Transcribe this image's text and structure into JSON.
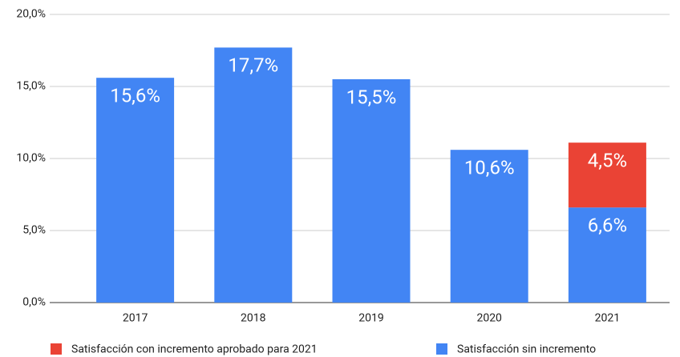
{
  "chart_data": {
    "type": "stacked_bar",
    "categories": [
      "2017",
      "2018",
      "2019",
      "2020",
      "2021"
    ],
    "series": [
      {
        "name": "Satisfacción con incremento aprobado para 2021",
        "color": "#ea4335",
        "values": [
          null,
          null,
          null,
          null,
          4.5
        ],
        "value_labels": [
          null,
          null,
          null,
          null,
          "4,5%"
        ]
      },
      {
        "name": "Satisfacción sin incremento",
        "color": "#4285f4",
        "values": [
          15.6,
          17.7,
          15.5,
          10.6,
          6.6
        ],
        "value_labels": [
          "15,6%",
          "17,7%",
          "15,5%",
          "10,6%",
          "6,6%"
        ]
      }
    ],
    "ylim": [
      0,
      20
    ],
    "yticks": [
      {
        "value": 0,
        "label": "0,0%"
      },
      {
        "value": 5,
        "label": "5,0%"
      },
      {
        "value": 10,
        "label": "10,0%"
      },
      {
        "value": 15,
        "label": "15,0%"
      },
      {
        "value": 20,
        "label": "20,0%"
      }
    ],
    "grid": true,
    "legend": "bottom"
  }
}
